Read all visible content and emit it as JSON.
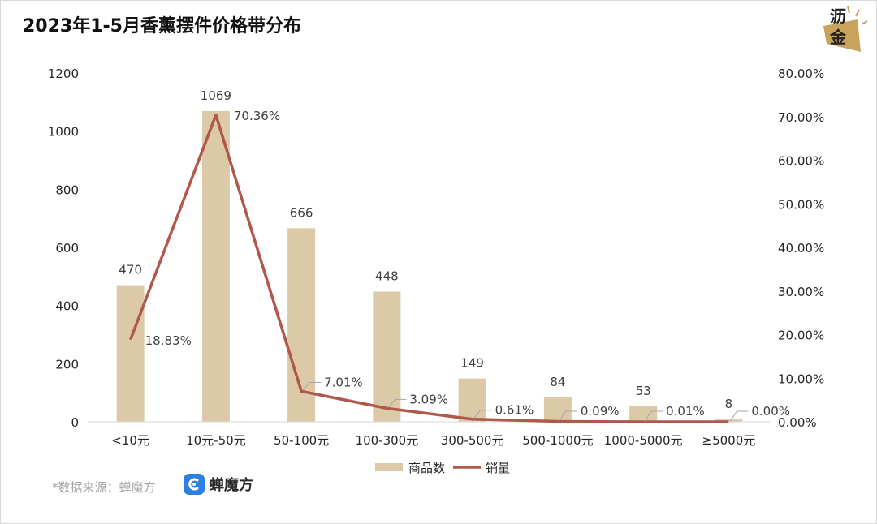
{
  "title": "2023年1-5月香薰摆件价格带分布",
  "logo": {
    "line1": "沥",
    "line2": "金"
  },
  "source": "*数据来源：蝉魔方",
  "brand": {
    "name": "蝉魔方"
  },
  "colors": {
    "bar": "#dcc9a8",
    "line": "#b0584a",
    "axis_text": "#262626",
    "label_text": "#404040"
  },
  "chart_data": {
    "type": "bar",
    "categories": [
      "<10元",
      "10元-50元",
      "50-100元",
      "100-300元",
      "300-500元",
      "500-1000元",
      "1000-5000元",
      "≥5000元"
    ],
    "series": [
      {
        "name": "商品数",
        "type": "bar",
        "axis": "left",
        "values": [
          470,
          1069,
          666,
          448,
          149,
          84,
          53,
          8
        ],
        "labels": [
          "470",
          "1069",
          "666",
          "448",
          "149",
          "84",
          "53",
          "8"
        ]
      },
      {
        "name": "销量",
        "type": "line",
        "axis": "right",
        "values": [
          18.83,
          70.36,
          7.01,
          3.09,
          0.61,
          0.09,
          0.01,
          0.0
        ],
        "labels": [
          "18.83%",
          "70.36%",
          "7.01%",
          "3.09%",
          "0.61%",
          "0.09%",
          "0.01%",
          "0.00%"
        ]
      }
    ],
    "ylim": [
      0,
      1200
    ],
    "yticks": [
      "0",
      "200",
      "400",
      "600",
      "800",
      "1000",
      "1200"
    ],
    "y2lim": [
      0,
      80
    ],
    "y2ticks": [
      "0.00%",
      "10.00%",
      "20.00%",
      "30.00%",
      "40.00%",
      "50.00%",
      "60.00%",
      "70.00%",
      "80.00%"
    ],
    "legend": [
      "商品数",
      "销量"
    ],
    "legend_position": "bottom",
    "grid": false
  }
}
